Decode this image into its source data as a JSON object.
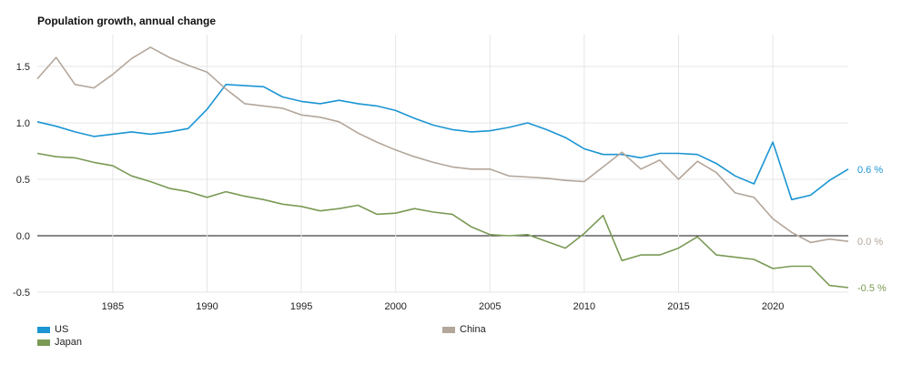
{
  "chart_data": {
    "type": "line",
    "title": "Population growth, annual change",
    "xlabel": "",
    "ylabel": "",
    "xlim": [
      1981,
      2024
    ],
    "ylim": [
      -0.5,
      1.8
    ],
    "yticks": [
      -0.5,
      0.0,
      0.5,
      1.0,
      1.5
    ],
    "ytick_labels": [
      "-0.5",
      "0.0",
      "0.5",
      "1.0",
      "1.5"
    ],
    "xticks": [
      1985,
      1990,
      1995,
      2000,
      2005,
      2010,
      2015,
      2020
    ],
    "grid": true,
    "legend_position": "bottom",
    "series": [
      {
        "name": "US",
        "color": "#1b95d3",
        "end_label": "0.6 %",
        "x": [
          1981,
          1982,
          1983,
          1984,
          1985,
          1986,
          1987,
          1988,
          1989,
          1990,
          1991,
          1992,
          1993,
          1994,
          1995,
          1996,
          1997,
          1998,
          1999,
          2000,
          2001,
          2002,
          2003,
          2004,
          2005,
          2006,
          2007,
          2008,
          2009,
          2010,
          2011,
          2012,
          2013,
          2014,
          2015,
          2016,
          2017,
          2018,
          2019,
          2020,
          2021,
          2022,
          2023,
          2024
        ],
        "values": [
          1.01,
          0.97,
          0.92,
          0.88,
          0.9,
          0.92,
          0.9,
          0.92,
          0.95,
          1.12,
          1.34,
          1.33,
          1.32,
          1.23,
          1.19,
          1.17,
          1.2,
          1.17,
          1.15,
          1.11,
          1.04,
          0.98,
          0.94,
          0.92,
          0.93,
          0.96,
          1.0,
          0.94,
          0.87,
          0.77,
          0.72,
          0.72,
          0.69,
          0.73,
          0.73,
          0.72,
          0.64,
          0.53,
          0.46,
          0.83,
          0.32,
          0.36,
          0.49,
          0.59
        ]
      },
      {
        "name": "China",
        "color": "#b3a69b",
        "end_label": "0.0 %",
        "x": [
          1981,
          1982,
          1983,
          1984,
          1985,
          1986,
          1987,
          1988,
          1989,
          1990,
          1991,
          1992,
          1993,
          1994,
          1995,
          1996,
          1997,
          1998,
          1999,
          2000,
          2001,
          2002,
          2003,
          2004,
          2005,
          2006,
          2007,
          2008,
          2009,
          2010,
          2011,
          2012,
          2013,
          2014,
          2015,
          2016,
          2017,
          2018,
          2019,
          2020,
          2021,
          2022,
          2023,
          2024
        ],
        "values": [
          1.39,
          1.58,
          1.34,
          1.31,
          1.43,
          1.57,
          1.67,
          1.58,
          1.51,
          1.45,
          1.3,
          1.17,
          1.15,
          1.13,
          1.07,
          1.05,
          1.01,
          0.91,
          0.83,
          0.76,
          0.7,
          0.65,
          0.61,
          0.59,
          0.59,
          0.53,
          0.52,
          0.51,
          0.49,
          0.48,
          0.61,
          0.74,
          0.59,
          0.67,
          0.5,
          0.66,
          0.56,
          0.38,
          0.34,
          0.15,
          0.03,
          -0.06,
          -0.03,
          -0.05
        ]
      },
      {
        "name": "Japan",
        "color": "#7a9a55",
        "end_label": "-0.5 %",
        "x": [
          1981,
          1982,
          1983,
          1984,
          1985,
          1986,
          1987,
          1988,
          1989,
          1990,
          1991,
          1992,
          1993,
          1994,
          1995,
          1996,
          1997,
          1998,
          1999,
          2000,
          2001,
          2002,
          2003,
          2004,
          2005,
          2006,
          2007,
          2008,
          2009,
          2010,
          2011,
          2012,
          2013,
          2014,
          2015,
          2016,
          2017,
          2018,
          2019,
          2020,
          2021,
          2022,
          2023,
          2024
        ],
        "values": [
          0.73,
          0.7,
          0.69,
          0.65,
          0.62,
          0.53,
          0.48,
          0.42,
          0.39,
          0.34,
          0.39,
          0.35,
          0.32,
          0.28,
          0.26,
          0.22,
          0.24,
          0.27,
          0.19,
          0.2,
          0.24,
          0.21,
          0.19,
          0.08,
          0.01,
          0.0,
          0.01,
          -0.05,
          -0.11,
          0.02,
          0.18,
          -0.22,
          -0.17,
          -0.17,
          -0.11,
          -0.01,
          -0.17,
          -0.19,
          -0.21,
          -0.29,
          -0.27,
          -0.27,
          -0.44,
          -0.46
        ]
      }
    ]
  }
}
